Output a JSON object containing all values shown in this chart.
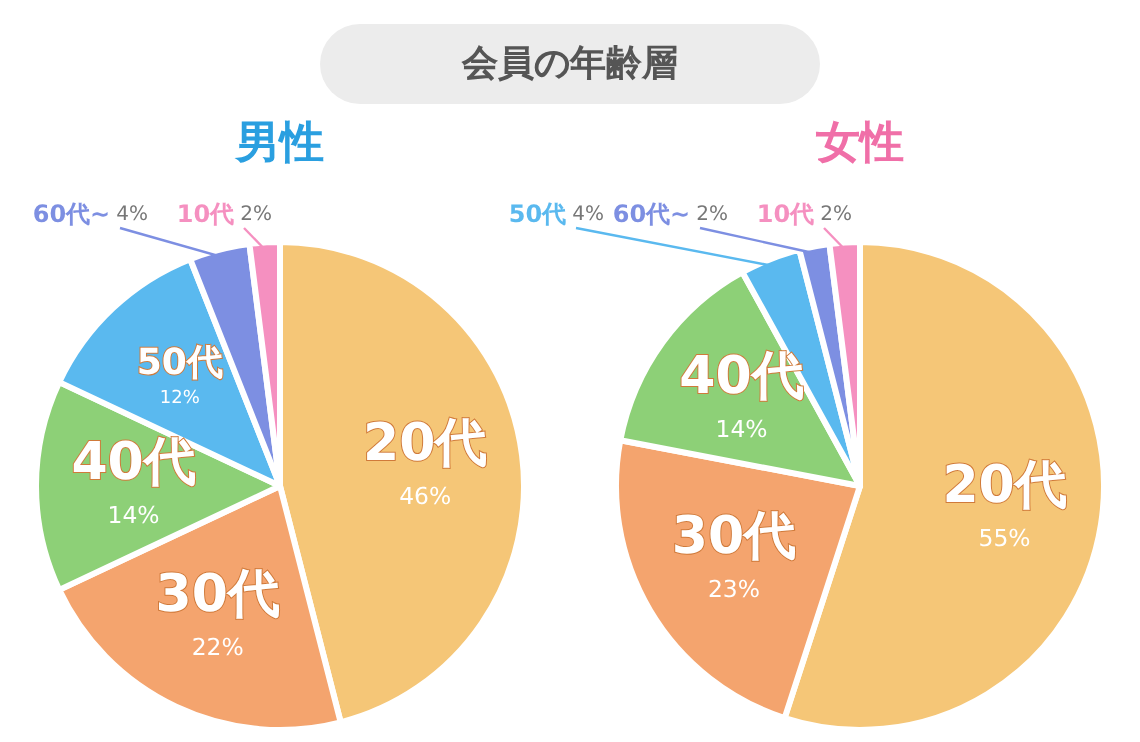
{
  "chart_data": [
    {
      "type": "pie",
      "title": "男性",
      "annotations": [
        "会員の年齢層"
      ],
      "categories": [
        "20代",
        "30代",
        "40代",
        "50代",
        "60代~",
        "10代"
      ],
      "values": [
        46,
        22,
        14,
        12,
        4,
        2
      ],
      "value_labels": [
        "46%",
        "22%",
        "14%",
        "12%",
        "4%",
        "2%"
      ],
      "colors": [
        "#f5c677",
        "#f4a46e",
        "#8dd077",
        "#5ab9ef",
        "#7d8fe2",
        "#f590c0"
      ],
      "data_labels": true
    },
    {
      "type": "pie",
      "title": "女性",
      "categories": [
        "20代",
        "30代",
        "40代",
        "50代",
        "60代~",
        "10代"
      ],
      "values": [
        55,
        23,
        14,
        4,
        2,
        2
      ],
      "value_labels": [
        "55%",
        "23%",
        "14%",
        "4%",
        "2%",
        "2%"
      ],
      "colors": [
        "#f5c677",
        "#f4a46e",
        "#8dd077",
        "#5ab9ef",
        "#7d8fe2",
        "#f590c0"
      ],
      "data_labels": true
    }
  ]
}
